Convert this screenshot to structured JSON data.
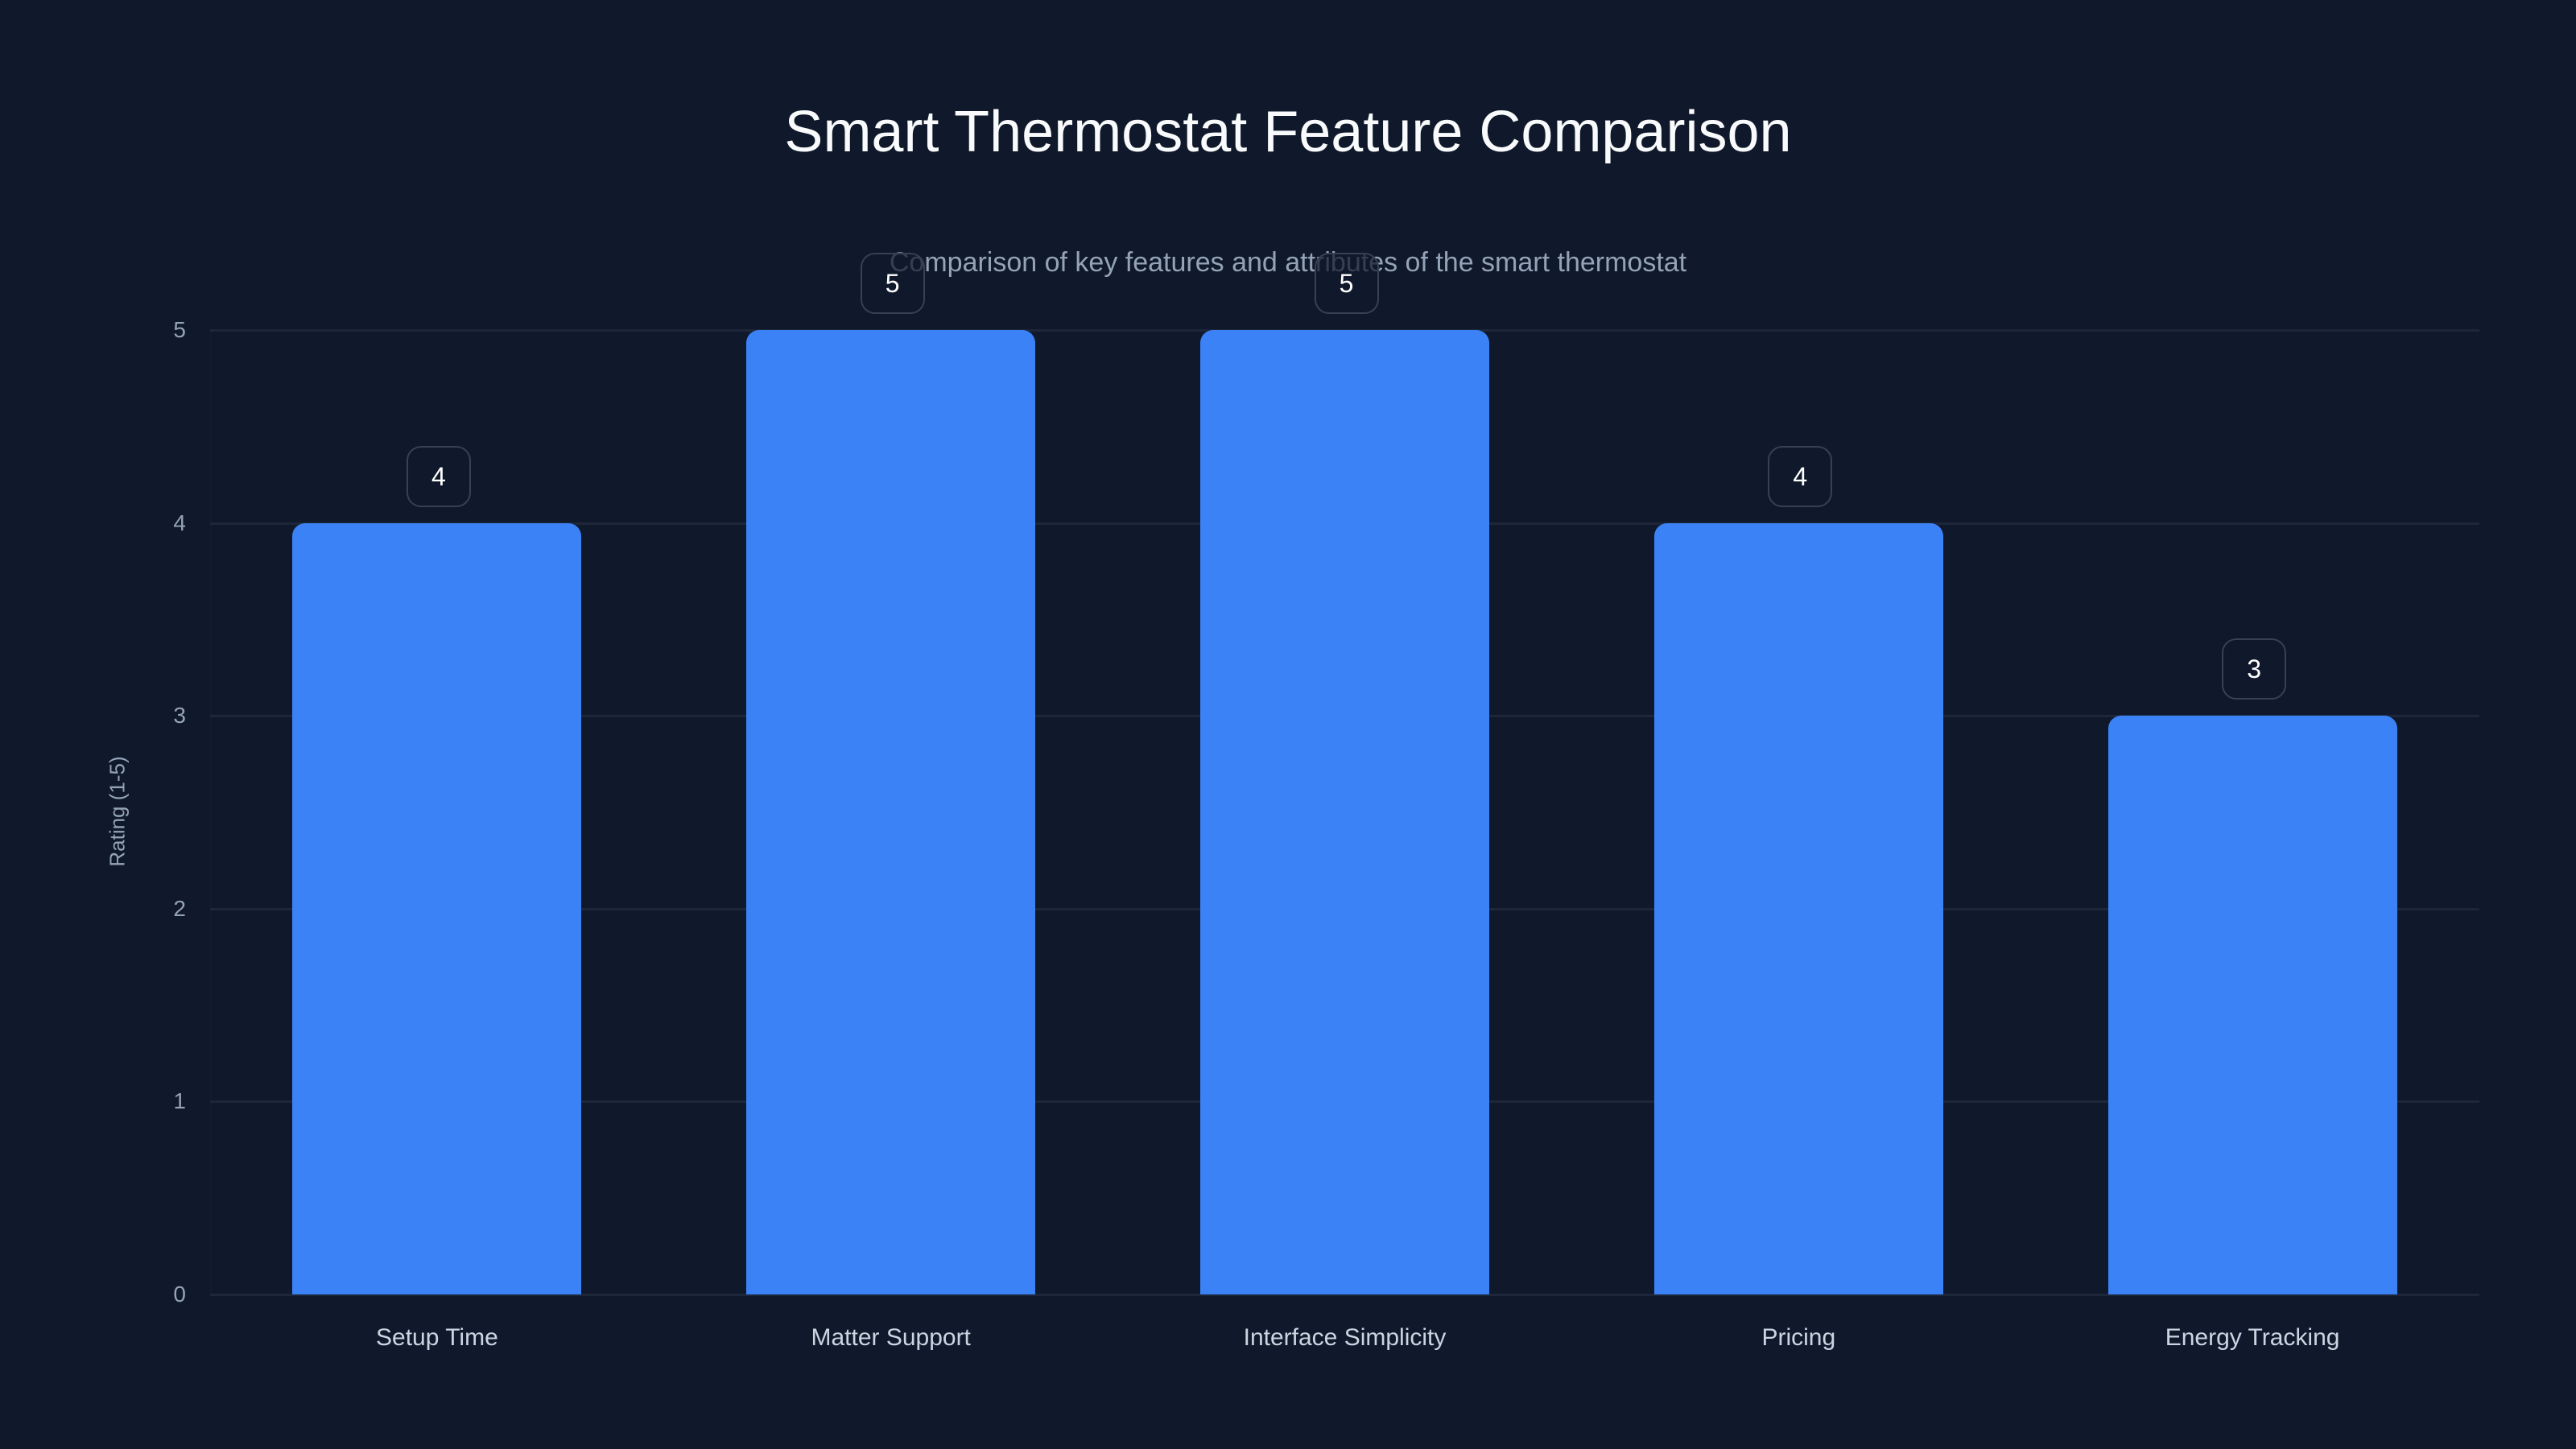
{
  "chart_data": {
    "type": "bar",
    "title": "Smart Thermostat Feature Comparison",
    "subtitle": "Comparison of key features and attributes of the smart thermostat",
    "xlabel": "",
    "ylabel": "Rating (1-5)",
    "categories": [
      "Setup Time",
      "Matter Support",
      "Interface Simplicity",
      "Pricing",
      "Energy Tracking"
    ],
    "values": [
      4,
      5,
      5,
      4,
      3
    ],
    "ylim": [
      0,
      5
    ],
    "yticks": [
      "0",
      "1",
      "2",
      "3",
      "4",
      "5"
    ],
    "grid": true,
    "legend": null,
    "data_labels": [
      "4",
      "5",
      "5",
      "4",
      "3"
    ],
    "colors": {
      "background": "#10192b",
      "bar": "#3b82f6",
      "gridline": "#1e2739",
      "label_border": "#374151"
    }
  }
}
